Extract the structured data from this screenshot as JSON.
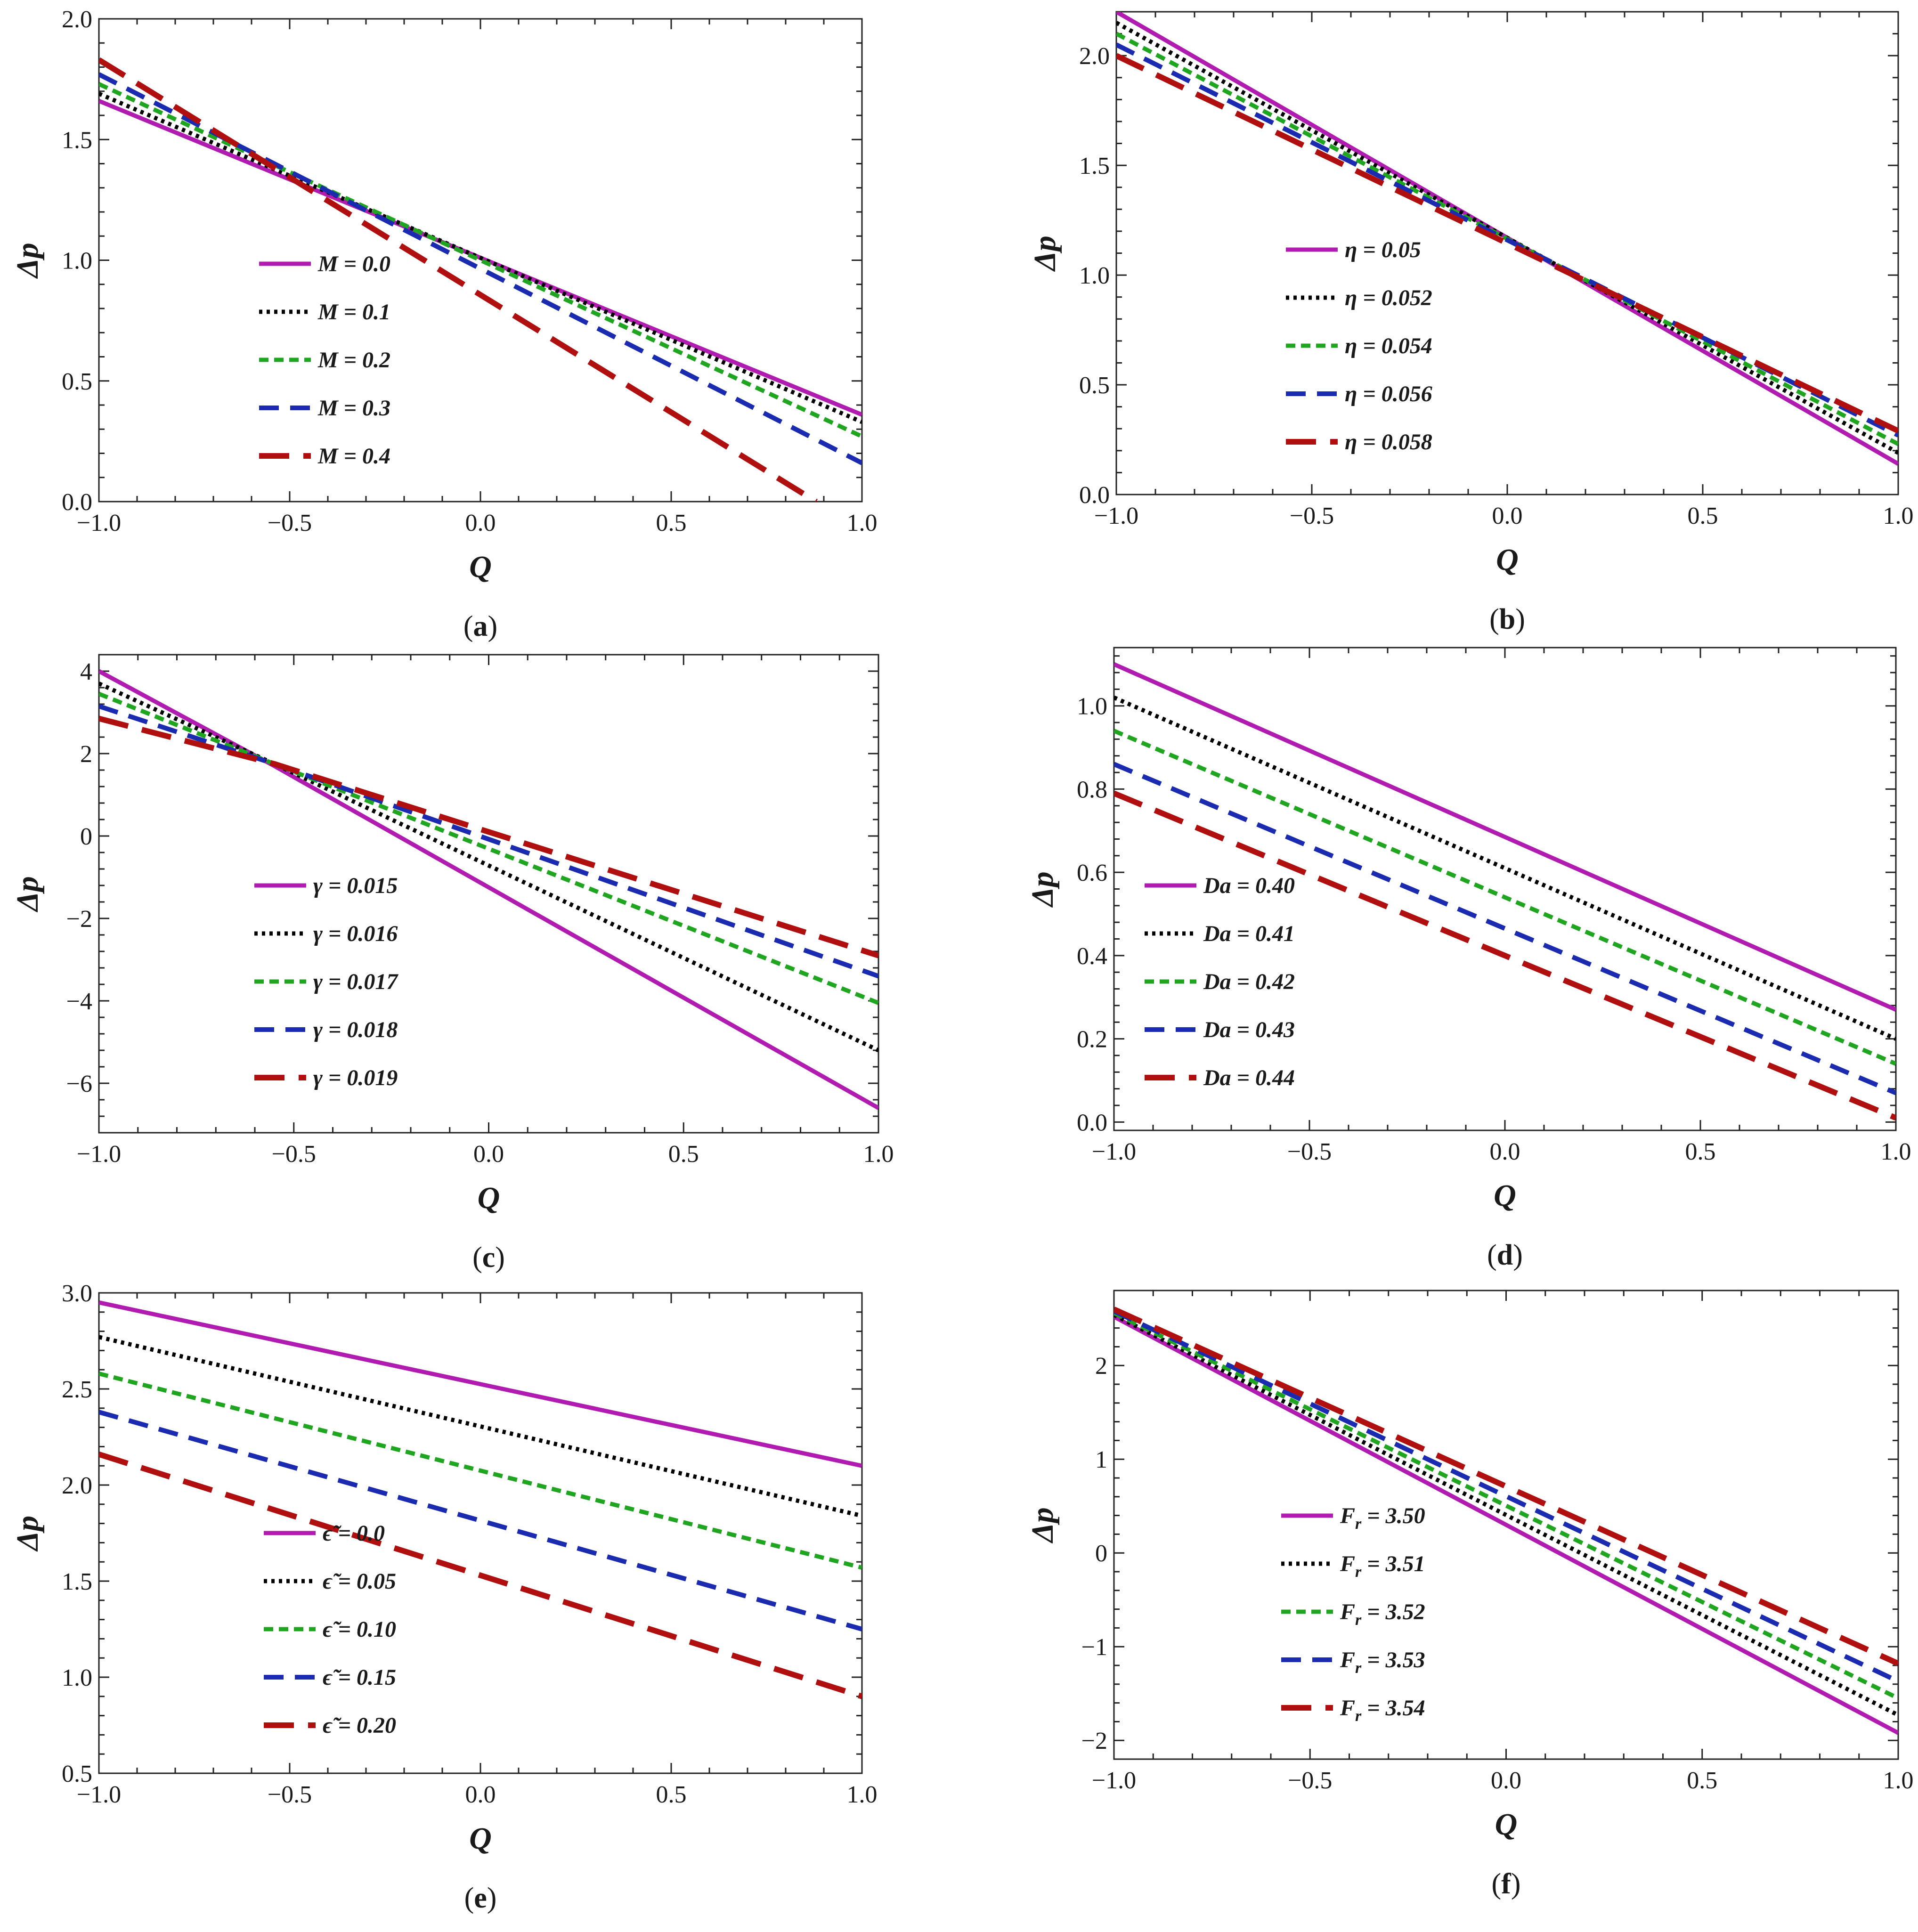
{
  "chart_data": [
    {
      "type": "line",
      "panel_label": "a",
      "xlabel": "Q",
      "ylabel": "Δp",
      "xlim": [
        -1.0,
        1.0
      ],
      "ylim": [
        0.0,
        2.0
      ],
      "xticks": [
        "−1.0",
        "−0.5",
        "0.0",
        "0.5",
        "1.0"
      ],
      "xtick_values": [
        -1.0,
        -0.5,
        0.0,
        0.5,
        1.0
      ],
      "yticks": [
        "0.0",
        "0.5",
        "1.0",
        "1.5",
        "2.0"
      ],
      "ytick_values": [
        0.0,
        0.5,
        1.0,
        1.5,
        2.0
      ],
      "series": [
        {
          "name": "M = 0.0",
          "color": "#b01cb0",
          "style": "solid",
          "x": [
            -1.0,
            1.0
          ],
          "y": [
            1.66,
            0.36
          ]
        },
        {
          "name": "M = 0.1",
          "color": "#000000",
          "style": "dotted",
          "x": [
            -1.0,
            1.0
          ],
          "y": [
            1.69,
            0.33
          ]
        },
        {
          "name": "M = 0.2",
          "color": "#1fa51f",
          "style": "short-dash",
          "x": [
            -1.0,
            1.0
          ],
          "y": [
            1.73,
            0.27
          ]
        },
        {
          "name": "M = 0.3",
          "color": "#1a2bb0",
          "style": "medium-dash",
          "x": [
            -1.0,
            1.0
          ],
          "y": [
            1.77,
            0.16
          ]
        },
        {
          "name": "M = 0.4",
          "color": "#b00f0f",
          "style": "long-dash",
          "x": [
            -1.0,
            0.88
          ],
          "y": [
            1.83,
            0.0
          ]
        }
      ]
    },
    {
      "type": "line",
      "panel_label": "b",
      "xlabel": "Q",
      "ylabel": "Δp",
      "xlim": [
        -1.0,
        1.0
      ],
      "ylim": [
        0.0,
        2.2
      ],
      "xticks": [
        "−1.0",
        "−0.5",
        "0.0",
        "0.5",
        "1.0"
      ],
      "xtick_values": [
        -1.0,
        -0.5,
        0.0,
        0.5,
        1.0
      ],
      "yticks": [
        "0.0",
        "0.5",
        "1.0",
        "1.5",
        "2.0"
      ],
      "ytick_values": [
        0.0,
        0.5,
        1.0,
        1.5,
        2.0
      ],
      "series": [
        {
          "name": "η = 0.05",
          "color": "#b01cb0",
          "style": "solid",
          "x": [
            -1.0,
            1.0
          ],
          "y": [
            2.2,
            0.14
          ]
        },
        {
          "name": "η = 0.052",
          "color": "#000000",
          "style": "dotted",
          "x": [
            -1.0,
            1.0
          ],
          "y": [
            2.15,
            0.19
          ]
        },
        {
          "name": "η = 0.054",
          "color": "#1fa51f",
          "style": "short-dash",
          "x": [
            -1.0,
            1.0
          ],
          "y": [
            2.1,
            0.23
          ]
        },
        {
          "name": "η = 0.056",
          "color": "#1a2bb0",
          "style": "medium-dash",
          "x": [
            -1.0,
            1.0
          ],
          "y": [
            2.05,
            0.27
          ]
        },
        {
          "name": "η = 0.058",
          "color": "#b00f0f",
          "style": "long-dash",
          "x": [
            -1.0,
            1.0
          ],
          "y": [
            2.0,
            0.29
          ]
        }
      ]
    },
    {
      "type": "line",
      "panel_label": "c",
      "xlabel": "Q",
      "ylabel": "Δp",
      "xlim": [
        -1.0,
        1.0
      ],
      "ylim": [
        -7.2,
        4.4
      ],
      "xticks": [
        "−1.0",
        "−0.5",
        "0.0",
        "0.5",
        "1.0"
      ],
      "xtick_values": [
        -1.0,
        -0.5,
        0.0,
        0.5,
        1.0
      ],
      "yticks": [
        "−6",
        "−4",
        "−2",
        "0",
        "2",
        "4"
      ],
      "ytick_values": [
        -6,
        -4,
        -2,
        0,
        2,
        4
      ],
      "series": [
        {
          "name": "γ = 0.015",
          "color": "#b01cb0",
          "style": "solid",
          "x": [
            -1.0,
            -0.55,
            1.0
          ],
          "y": [
            4.0,
            1.7,
            -6.6
          ]
        },
        {
          "name": "γ = 0.016",
          "color": "#000000",
          "style": "dotted",
          "x": [
            -1.0,
            -0.55,
            1.0
          ],
          "y": [
            3.7,
            1.75,
            -5.2
          ]
        },
        {
          "name": "γ = 0.017",
          "color": "#1fa51f",
          "style": "short-dash",
          "x": [
            -1.0,
            -0.55,
            1.0
          ],
          "y": [
            3.45,
            1.75,
            -4.05
          ]
        },
        {
          "name": "γ = 0.018",
          "color": "#1a2bb0",
          "style": "medium-dash",
          "x": [
            -1.0,
            -0.55,
            1.0
          ],
          "y": [
            3.15,
            1.75,
            -3.4
          ]
        },
        {
          "name": "γ = 0.019",
          "color": "#b00f0f",
          "style": "long-dash",
          "x": [
            -1.0,
            -0.55,
            1.0
          ],
          "y": [
            2.85,
            1.75,
            -2.9
          ]
        }
      ]
    },
    {
      "type": "line",
      "panel_label": "d",
      "xlabel": "Q",
      "ylabel": "Δp",
      "xlim": [
        -1.0,
        1.0
      ],
      "ylim": [
        -0.02,
        1.14
      ],
      "xticks": [
        "−1.0",
        "−0.5",
        "0.0",
        "0.5",
        "1.0"
      ],
      "xtick_values": [
        -1.0,
        -0.5,
        0.0,
        0.5,
        1.0
      ],
      "yticks": [
        "0.0",
        "0.2",
        "0.4",
        "0.6",
        "0.8",
        "1.0"
      ],
      "ytick_values": [
        0.0,
        0.2,
        0.4,
        0.6,
        0.8,
        1.0
      ],
      "series": [
        {
          "name": "Da = 0.40",
          "color": "#b01cb0",
          "style": "solid",
          "x": [
            -1.0,
            1.0
          ],
          "y": [
            1.1,
            0.27
          ]
        },
        {
          "name": "Da = 0.41",
          "color": "#000000",
          "style": "dotted",
          "x": [
            -1.0,
            1.0
          ],
          "y": [
            1.02,
            0.2
          ]
        },
        {
          "name": "Da = 0.42",
          "color": "#1fa51f",
          "style": "short-dash",
          "x": [
            -1.0,
            1.0
          ],
          "y": [
            0.94,
            0.14
          ]
        },
        {
          "name": "Da = 0.43",
          "color": "#1a2bb0",
          "style": "medium-dash",
          "x": [
            -1.0,
            1.0
          ],
          "y": [
            0.86,
            0.07
          ]
        },
        {
          "name": "Da = 0.44",
          "color": "#b00f0f",
          "style": "long-dash",
          "x": [
            -1.0,
            1.0
          ],
          "y": [
            0.79,
            0.01
          ]
        }
      ]
    },
    {
      "type": "line",
      "panel_label": "e",
      "xlabel": "Q",
      "ylabel": "Δp",
      "xlim": [
        -1.0,
        1.0
      ],
      "ylim": [
        0.5,
        3.0
      ],
      "xticks": [
        "−1.0",
        "−0.5",
        "0.0",
        "0.5",
        "1.0"
      ],
      "xtick_values": [
        -1.0,
        -0.5,
        0.0,
        0.5,
        1.0
      ],
      "yticks": [
        "0.5",
        "1.0",
        "1.5",
        "2.0",
        "2.5",
        "3.0"
      ],
      "ytick_values": [
        0.5,
        1.0,
        1.5,
        2.0,
        2.5,
        3.0
      ],
      "series": [
        {
          "name": "ϵ̃ = 0.0",
          "color": "#b01cb0",
          "style": "solid",
          "x": [
            -1.0,
            1.0
          ],
          "y": [
            2.95,
            2.1
          ]
        },
        {
          "name": "ϵ̃ = 0.05",
          "color": "#000000",
          "style": "dotted",
          "x": [
            -1.0,
            1.0
          ],
          "y": [
            2.77,
            1.84
          ]
        },
        {
          "name": "ϵ̃ = 0.10",
          "color": "#1fa51f",
          "style": "short-dash",
          "x": [
            -1.0,
            1.0
          ],
          "y": [
            2.58,
            1.57
          ]
        },
        {
          "name": "ϵ̃ = 0.15",
          "color": "#1a2bb0",
          "style": "medium-dash",
          "x": [
            -1.0,
            1.0
          ],
          "y": [
            2.38,
            1.25
          ]
        },
        {
          "name": "ϵ̃ = 0.20",
          "color": "#b00f0f",
          "style": "long-dash",
          "x": [
            -1.0,
            1.0
          ],
          "y": [
            2.16,
            0.9
          ]
        }
      ]
    },
    {
      "type": "line",
      "panel_label": "f",
      "xlabel": "Q",
      "ylabel": "Δp",
      "xlim": [
        -1.0,
        1.0
      ],
      "ylim": [
        -2.2,
        2.8
      ],
      "xticks": [
        "−1.0",
        "−0.5",
        "0.0",
        "0.5",
        "1.0"
      ],
      "xtick_values": [
        -1.0,
        -0.5,
        0.0,
        0.5,
        1.0
      ],
      "yticks": [
        "−2",
        "−1",
        "0",
        "1",
        "2"
      ],
      "ytick_values": [
        -2,
        -1,
        0,
        1,
        2
      ],
      "series": [
        {
          "name": "Fr = 3.50",
          "label_sym": "F",
          "label_sub": "r",
          "label_val": " = 3.50",
          "color": "#b01cb0",
          "style": "solid",
          "x": [
            -1.0,
            1.0
          ],
          "y": [
            2.52,
            -1.92
          ]
        },
        {
          "name": "Fr = 3.51",
          "label_sym": "F",
          "label_sub": "r",
          "label_val": " = 3.51",
          "color": "#000000",
          "style": "dotted",
          "x": [
            -1.0,
            1.0
          ],
          "y": [
            2.54,
            -1.73
          ]
        },
        {
          "name": "Fr = 3.52",
          "label_sym": "F",
          "label_sub": "r",
          "label_val": " = 3.52",
          "color": "#1fa51f",
          "style": "short-dash",
          "x": [
            -1.0,
            1.0
          ],
          "y": [
            2.56,
            -1.55
          ]
        },
        {
          "name": "Fr = 3.53",
          "label_sym": "F",
          "label_sub": "r",
          "label_val": " = 3.53",
          "color": "#1a2bb0",
          "style": "medium-dash",
          "x": [
            -1.0,
            1.0
          ],
          "y": [
            2.58,
            -1.37
          ]
        },
        {
          "name": "Fr = 3.54",
          "label_sym": "F",
          "label_sub": "r",
          "label_val": " = 3.54",
          "color": "#b00f0f",
          "style": "long-dash",
          "x": [
            -1.0,
            1.0
          ],
          "y": [
            2.6,
            -1.18
          ]
        }
      ]
    }
  ]
}
